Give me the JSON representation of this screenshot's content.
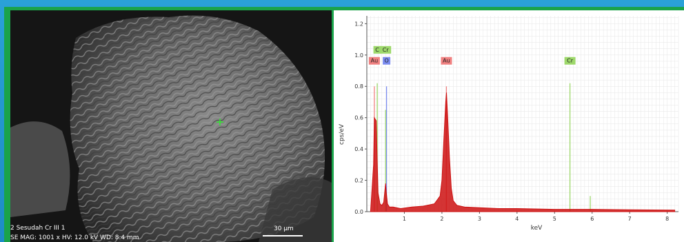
{
  "sem_image": {
    "caption_line1": "2 Sesudah Cr III   1",
    "caption_line2": "SE  MAG: 1001 x  HV: 12.0 kV  WD: 8.4 mm",
    "scale_bar_label": "30 µm",
    "marker_color": "#2ee82e"
  },
  "chart_data": {
    "type": "line",
    "xlabel": "keV",
    "ylabel": "cps/eV",
    "xlim": [
      0,
      8.3
    ],
    "ylim": [
      0,
      1.25
    ],
    "x_ticks": [
      "1",
      "2",
      "3",
      "4",
      "5",
      "6",
      "7",
      "8"
    ],
    "y_ticks": [
      "0.0",
      "0.2",
      "0.4",
      "0.6",
      "0.8",
      "1.0",
      "1.2"
    ],
    "grid": true,
    "spectrum_color": "#cc1111",
    "spectrum": {
      "x": [
        0.1,
        0.18,
        0.2,
        0.25,
        0.28,
        0.3,
        0.35,
        0.4,
        0.45,
        0.5,
        0.52,
        0.55,
        0.6,
        0.7,
        0.9,
        1.2,
        1.5,
        1.8,
        1.95,
        2.0,
        2.05,
        2.1,
        2.12,
        2.15,
        2.2,
        2.25,
        2.3,
        2.4,
        2.6,
        3.0,
        3.5,
        4.0,
        5.0,
        6.0,
        7.0,
        8.2
      ],
      "y": [
        0.0,
        0.3,
        0.6,
        0.58,
        0.3,
        0.12,
        0.05,
        0.04,
        0.06,
        0.18,
        0.12,
        0.05,
        0.03,
        0.03,
        0.02,
        0.03,
        0.035,
        0.05,
        0.1,
        0.2,
        0.45,
        0.7,
        0.76,
        0.62,
        0.35,
        0.15,
        0.07,
        0.04,
        0.03,
        0.025,
        0.02,
        0.02,
        0.015,
        0.015,
        0.012,
        0.01
      ]
    },
    "element_markers": [
      {
        "label": "C",
        "x": 0.277,
        "height": 0.82,
        "color": "#9dd86a",
        "row": 0
      },
      {
        "label": "Cr",
        "x": 0.5,
        "height": 0.65,
        "color": "#9dd86a",
        "row": 0
      },
      {
        "label": "Au",
        "x": 0.2,
        "height": 0.8,
        "color": "#f08080",
        "row": 1
      },
      {
        "label": "O",
        "x": 0.525,
        "height": 0.8,
        "color": "#7b8cf0",
        "row": 1
      },
      {
        "label": "Au",
        "x": 2.12,
        "height": 0.8,
        "color": "#f08080",
        "row": 1
      },
      {
        "label": "Cr",
        "x": 5.41,
        "height": 0.82,
        "color": "#9dd86a",
        "row": 1
      },
      {
        "label": "",
        "x": 5.95,
        "height": 0.1,
        "color": "#9dd86a",
        "row": -1
      }
    ]
  }
}
